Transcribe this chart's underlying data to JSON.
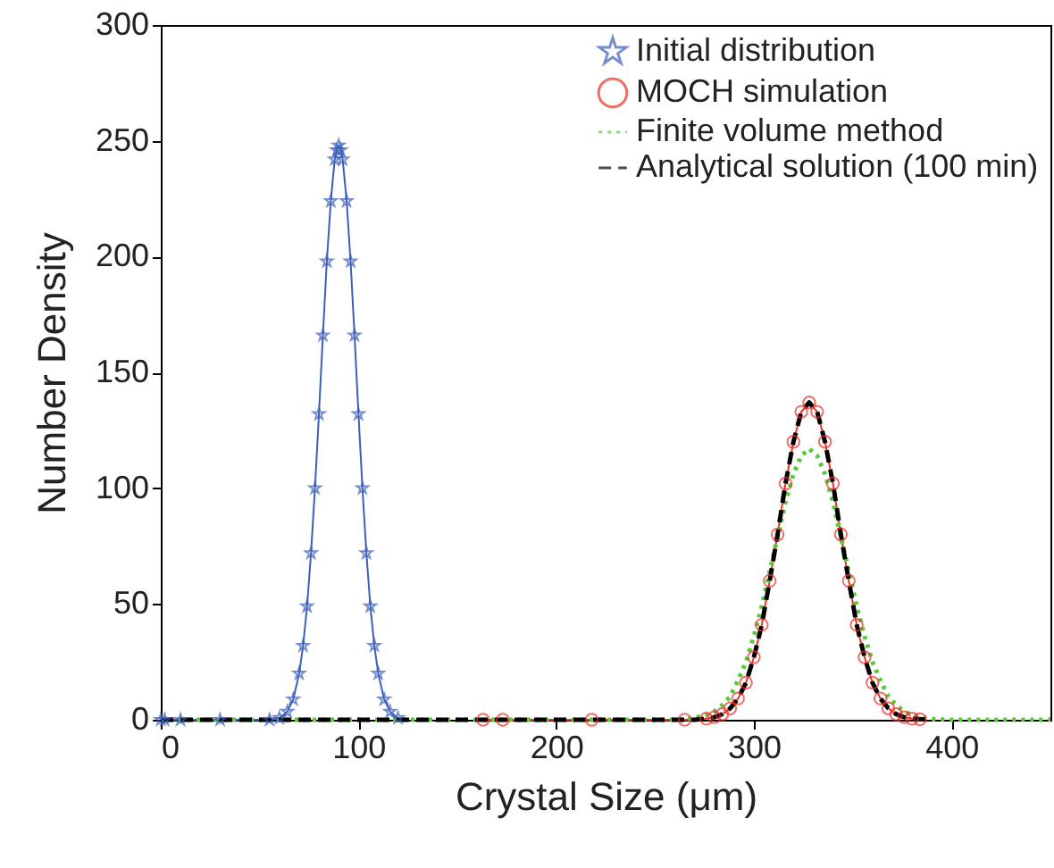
{
  "chart_data": {
    "type": "line",
    "xlabel": "Crystal Size (μm)",
    "ylabel": "Number Density",
    "xlim": [
      0,
      450
    ],
    "xticks": [
      0,
      100,
      200,
      300,
      400
    ],
    "ylim": [
      0,
      300
    ],
    "yticks": [
      0,
      50,
      100,
      150,
      200,
      250,
      300
    ],
    "legend": "top right",
    "grid": false,
    "series": [
      {
        "name": "Initial distribution",
        "color": "#3d5fb8",
        "marker": "star",
        "line_style": "solid",
        "x": [
          0,
          2,
          10,
          30,
          55,
          60,
          64,
          67,
          70,
          72,
          74,
          76,
          78,
          80,
          82,
          84,
          86,
          88,
          89,
          90,
          91,
          92,
          94,
          96,
          98,
          100,
          102,
          104,
          106,
          108,
          110,
          113,
          116,
          120
        ],
        "values": [
          0,
          0,
          0,
          0,
          0,
          0.8,
          3.5,
          8.8,
          20,
          32,
          49,
          72,
          100,
          132,
          166,
          198,
          224,
          242,
          246,
          248,
          246,
          242,
          224,
          198,
          166,
          132,
          100,
          72,
          49,
          32,
          20,
          8.8,
          3.5,
          0.8
        ]
      },
      {
        "name": "MOCH simulation",
        "color": "#e8322a",
        "marker": "circle",
        "line_style": "solid",
        "x": [
          163,
          173,
          218,
          265,
          276,
          280,
          284,
          288,
          292,
          296,
          300,
          304,
          308,
          312,
          316,
          320,
          324,
          328,
          332,
          336,
          340,
          344,
          348,
          352,
          356,
          360,
          364,
          368,
          372,
          376,
          380,
          384
        ],
        "values": [
          0,
          0,
          0,
          0,
          0.5,
          1.1,
          2.4,
          4.9,
          9.2,
          16,
          27,
          41,
          60,
          80,
          102,
          120,
          133,
          137,
          133,
          120,
          102,
          80,
          60,
          41,
          27,
          16,
          9.2,
          4.9,
          2.4,
          1.1,
          0.5,
          0.2
        ]
      },
      {
        "name": "Finite volume method",
        "color": "#5dc83c",
        "marker": "none",
        "line_style": "dotted",
        "x": [
          0,
          260,
          268,
          276,
          280,
          284,
          288,
          292,
          296,
          300,
          304,
          308,
          312,
          316,
          320,
          324,
          328,
          332,
          336,
          340,
          344,
          348,
          352,
          356,
          360,
          364,
          368,
          372,
          376,
          380,
          388,
          392,
          400,
          450
        ],
        "values": [
          0,
          0,
          0.5,
          2,
          3.6,
          6.3,
          10,
          17,
          25,
          36,
          49,
          64,
          79,
          94,
          106,
          114,
          117,
          114,
          106,
          94,
          79,
          64,
          49,
          36,
          25,
          17,
          10,
          6.3,
          3.6,
          2,
          0.5,
          0.2,
          0,
          0
        ]
      },
      {
        "name": "Analytical solution (100 min)",
        "color": "#000000",
        "marker": "none",
        "line_style": "dashed",
        "x": [
          0,
          270,
          276,
          280,
          284,
          288,
          292,
          296,
          300,
          304,
          308,
          312,
          316,
          320,
          324,
          328,
          332,
          336,
          340,
          344,
          348,
          352,
          356,
          360,
          364,
          368,
          372,
          376,
          380,
          388
        ],
        "values": [
          0,
          0,
          0.5,
          1.1,
          2.4,
          4.9,
          9.2,
          16,
          27,
          41,
          60,
          80,
          102,
          120,
          133,
          137,
          133,
          120,
          102,
          80,
          60,
          41,
          27,
          16,
          9.2,
          4.9,
          2.4,
          1.1,
          0.5,
          0
        ]
      }
    ]
  }
}
